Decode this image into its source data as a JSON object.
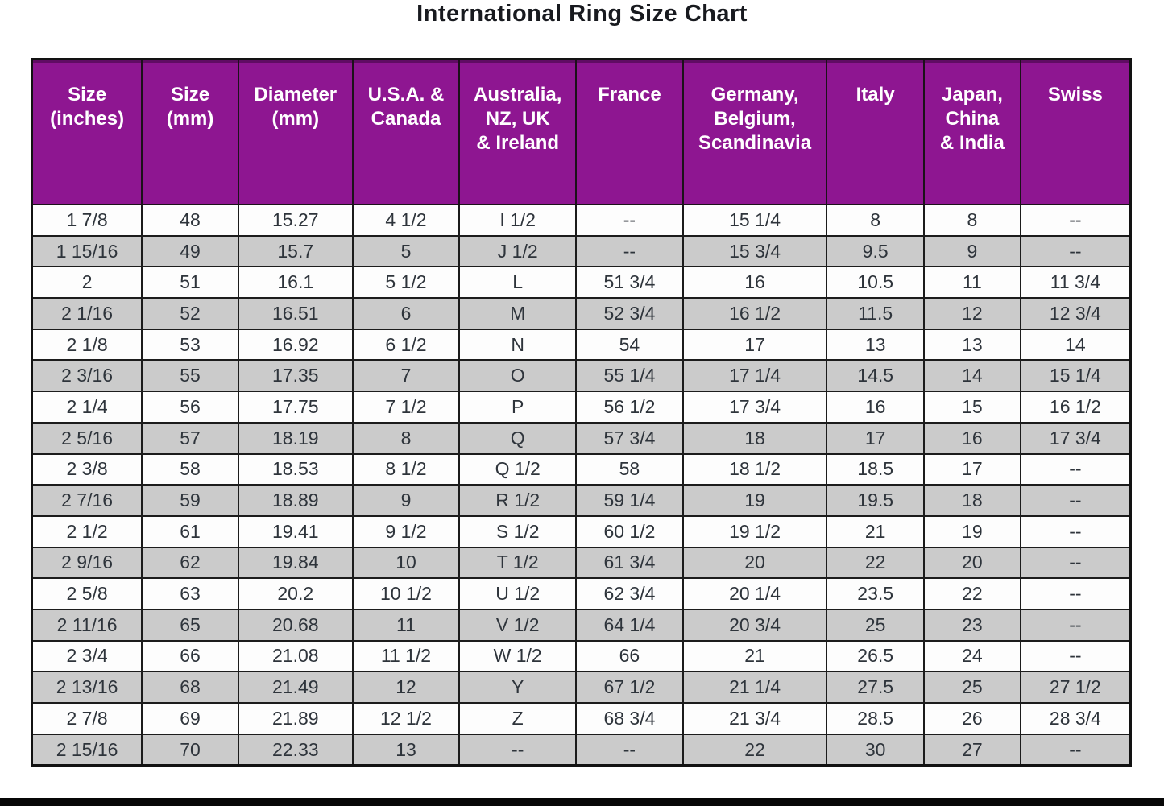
{
  "title": "International Ring Size Chart",
  "colors": {
    "header_background": "#8e1691",
    "header_text": "#ffffff",
    "row_alternate": "#cbcbcb",
    "row_plain": "#fdfdfd",
    "border": "#1c1c1c",
    "data_text": "#2e343b"
  },
  "chart_data": {
    "type": "table",
    "title": "International Ring Size Chart",
    "columns": [
      {
        "id": "size_inches",
        "label": "Size\n(inches)"
      },
      {
        "id": "size_mm",
        "label": "Size\n(mm)"
      },
      {
        "id": "diameter_mm",
        "label": "Diameter\n(mm)"
      },
      {
        "id": "usa_canada",
        "label": "U.S.A. &\nCanada"
      },
      {
        "id": "australia_nz_uk_ireland",
        "label": "Australia,\nNZ, UK\n& Ireland"
      },
      {
        "id": "france",
        "label": "France"
      },
      {
        "id": "germany_belgium_scandinavia",
        "label": "Germany,\nBelgium,\nScandinavia"
      },
      {
        "id": "italy",
        "label": "Italy"
      },
      {
        "id": "japan_china_india",
        "label": "Japan,\nChina\n& India"
      },
      {
        "id": "swiss",
        "label": "Swiss"
      }
    ],
    "rows": [
      [
        "1 7/8",
        "48",
        "15.27",
        "4 1/2",
        "I 1/2",
        "--",
        "15 1/4",
        "8",
        "8",
        "--"
      ],
      [
        "1 15/16",
        "49",
        "15.7",
        "5",
        "J 1/2",
        "--",
        "15 3/4",
        "9.5",
        "9",
        "--"
      ],
      [
        "2",
        "51",
        "16.1",
        "5 1/2",
        "L",
        "51 3/4",
        "16",
        "10.5",
        "11",
        "11 3/4"
      ],
      [
        "2 1/16",
        "52",
        "16.51",
        "6",
        "M",
        "52 3/4",
        "16 1/2",
        "11.5",
        "12",
        "12 3/4"
      ],
      [
        "2 1/8",
        "53",
        "16.92",
        "6 1/2",
        "N",
        "54",
        "17",
        "13",
        "13",
        "14"
      ],
      [
        "2 3/16",
        "55",
        "17.35",
        "7",
        "O",
        "55 1/4",
        "17 1/4",
        "14.5",
        "14",
        "15 1/4"
      ],
      [
        "2 1/4",
        "56",
        "17.75",
        "7 1/2",
        "P",
        "56 1/2",
        "17 3/4",
        "16",
        "15",
        "16 1/2"
      ],
      [
        "2 5/16",
        "57",
        "18.19",
        "8",
        "Q",
        "57 3/4",
        "18",
        "17",
        "16",
        "17 3/4"
      ],
      [
        "2 3/8",
        "58",
        "18.53",
        "8 1/2",
        "Q 1/2",
        "58",
        "18 1/2",
        "18.5",
        "17",
        "--"
      ],
      [
        "2 7/16",
        "59",
        "18.89",
        "9",
        "R 1/2",
        "59 1/4",
        "19",
        "19.5",
        "18",
        "--"
      ],
      [
        "2 1/2",
        "61",
        "19.41",
        "9 1/2",
        "S 1/2",
        "60 1/2",
        "19 1/2",
        "21",
        "19",
        "--"
      ],
      [
        "2 9/16",
        "62",
        "19.84",
        "10",
        "T 1/2",
        "61 3/4",
        "20",
        "22",
        "20",
        "--"
      ],
      [
        "2 5/8",
        "63",
        "20.2",
        "10 1/2",
        "U 1/2",
        "62 3/4",
        "20 1/4",
        "23.5",
        "22",
        "--"
      ],
      [
        "2 11/16",
        "65",
        "20.68",
        "11",
        "V 1/2",
        "64 1/4",
        "20 3/4",
        "25",
        "23",
        "--"
      ],
      [
        "2 3/4",
        "66",
        "21.08",
        "11 1/2",
        "W 1/2",
        "66",
        "21",
        "26.5",
        "24",
        "--"
      ],
      [
        "2 13/16",
        "68",
        "21.49",
        "12",
        "Y",
        "67 1/2",
        "21 1/4",
        "27.5",
        "25",
        "27 1/2"
      ],
      [
        "2 7/8",
        "69",
        "21.89",
        "12 1/2",
        "Z",
        "68 3/4",
        "21 3/4",
        "28.5",
        "26",
        "28 3/4"
      ],
      [
        "2 15/16",
        "70",
        "22.33",
        "13",
        "--",
        "--",
        "22",
        "30",
        "27",
        "--"
      ]
    ]
  }
}
